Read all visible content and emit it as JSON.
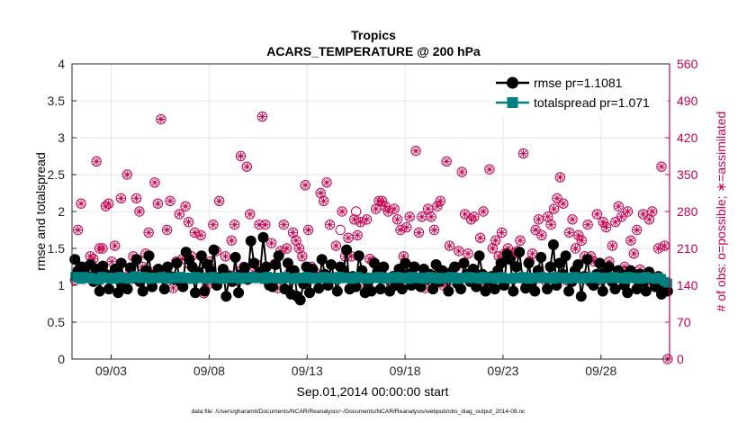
{
  "chart_data": {
    "type": "line",
    "title": "Tropics",
    "subtitle": "ACARS_TEMPERATURE @ 200 hPa",
    "xlabel": "Sep.01,2014 00:00:00 start",
    "ylabel_left": "rmse and totalspread",
    "ylabel_right": "# of obs: o=possible; ∗=assimilated",
    "footer": "data file: /Users/gharamti/Documents/NCAR/Reanalysis/~/Documents/NCAR/Reanalysis/webpub/obs_diag_output_2014-09.nc",
    "xlim": [
      1.0,
      31.5
    ],
    "ylim_left": [
      0,
      4
    ],
    "ylim_right": [
      0,
      560
    ],
    "x_ticks": [
      3,
      8,
      13,
      18,
      23,
      28
    ],
    "x_tick_labels": [
      "09/03",
      "09/08",
      "09/13",
      "09/18",
      "09/23",
      "09/28"
    ],
    "y_ticks_left": [
      "0",
      "0.5",
      "1",
      "1.5",
      "2",
      "2.5",
      "3",
      "3.5",
      "4"
    ],
    "y_ticks_right": [
      "0",
      "70",
      "140",
      "210",
      "280",
      "350",
      "420",
      "490",
      "560"
    ],
    "grid": true,
    "legend_position": "top-right",
    "colors": {
      "rmse": "#000000",
      "totalspread": "#007f7f",
      "obs": "#c8004f",
      "axis": "#262626",
      "grid": "#e6e6e6"
    },
    "series": [
      {
        "name": "rmse pr=1.1081",
        "axis": "left",
        "marker": "filled-circle",
        "values": [
          1.35,
          1.2,
          1.25,
          1.18,
          1.12,
          1.28,
          1.05,
          1.22,
          0.92,
          1.26,
          1.15,
          0.95,
          1.1,
          1.22,
          0.9,
          1.3,
          1.0,
          0.95,
          1.24,
          1.1,
          1.35,
          1.05,
          0.92,
          1.2,
          1.4,
          0.98,
          1.15,
          1.22,
          1.1,
          0.95,
          1.25,
          1.12,
          1.08,
          1.3,
          1.05,
          0.98,
          1.45,
          1.35,
          1.25,
          0.9,
          1.18,
          1.4,
          0.92,
          1.28,
          1.2,
          1.48,
          1.0,
          1.1,
          1.22,
          0.85,
          1.12,
          1.05,
          1.38,
          0.9,
          1.15,
          1.24,
          1.08,
          1.6,
          1.3,
          1.12,
          1.18,
          1.65,
          1.25,
          1.0,
          0.98,
          1.28,
          1.4,
          1.1,
          0.95,
          1.3,
          0.88,
          1.2,
          0.85,
          0.8,
          1.02,
          1.25,
          0.9,
          1.22,
          1.1,
          0.96,
          1.35,
          1.15,
          1.0,
          1.28,
          1.1,
          0.92,
          1.25,
          1.2,
          1.48,
          0.95,
          1.12,
          0.98,
          1.4,
          1.2,
          0.9,
          1.05,
          0.92,
          1.3,
          1.18,
          0.95,
          1.25,
          1.1,
          0.92,
          1.12,
          1.0,
          1.22,
          0.95,
          1.3,
          1.15,
          1.0,
          1.25,
          1.1,
          0.98,
          1.22,
          1.08,
          1.15,
          0.95,
          1.28,
          1.05,
          1.2,
          1.1,
          0.92,
          1.18,
          1.25,
          1.02,
          0.95,
          1.3,
          1.15,
          1.05,
          1.22,
          0.98,
          1.4,
          1.15,
          0.92,
          1.05,
          1.12,
          0.95,
          1.2,
          1.3,
          1.0,
          1.42,
          1.35,
          0.92,
          1.25,
          1.45,
          1.1,
          0.96,
          1.3,
          1.05,
          0.92,
          1.2,
          1.38,
          1.1,
          0.95,
          1.25,
          1.55,
          1.0,
          1.3,
          1.15,
          1.4,
          0.92,
          1.05,
          1.2,
          1.28,
          0.85,
          1.12,
          1.35,
          1.05,
          1.0,
          1.15,
          1.3,
          0.92,
          1.18,
          1.25,
          1.05,
          0.95,
          1.2,
          1.15,
          1.0,
          0.9,
          1.2,
          1.1,
          0.95,
          1.15,
          1.05,
          0.92,
          1.18,
          1.08,
          0.98,
          1.12,
          0.88,
          1.0,
          0.92
        ]
      },
      {
        "name": "totalspread pr=1.071",
        "axis": "left",
        "marker": "filled-square",
        "values": [
          1.12,
          1.1,
          1.08,
          1.12,
          1.09,
          1.11,
          1.08,
          1.1,
          1.07,
          1.12,
          1.1,
          1.09,
          1.11,
          1.08,
          1.1,
          1.12,
          1.09,
          1.1,
          1.08,
          1.11,
          1.13,
          1.1,
          1.09,
          1.12,
          1.1,
          1.08,
          1.11,
          1.1,
          1.09,
          1.12,
          1.1,
          1.08,
          1.11,
          1.09,
          1.1,
          1.12,
          1.09,
          1.11,
          1.1,
          1.08,
          1.12,
          1.1,
          1.09,
          1.11,
          1.08,
          1.1,
          1.12,
          1.09,
          1.1,
          1.08,
          1.11,
          1.1,
          1.09,
          1.12,
          1.1,
          1.08,
          1.11,
          1.09,
          1.1,
          1.12,
          1.09,
          1.11,
          1.1,
          1.08,
          1.12,
          1.1,
          1.09,
          1.11,
          1.08,
          1.1,
          1.12,
          1.09,
          1.1,
          1.08,
          1.11,
          1.1,
          1.09,
          1.12,
          1.1,
          1.08,
          1.11,
          1.09,
          1.1,
          1.12,
          1.09,
          1.11,
          1.1,
          1.08,
          1.12,
          1.1,
          1.09,
          1.11,
          1.08,
          1.1,
          1.12,
          1.09,
          1.1,
          1.08,
          1.11,
          1.1,
          1.09,
          1.12,
          1.1,
          1.08,
          1.11,
          1.09,
          1.1,
          1.12,
          1.09,
          1.11,
          1.1,
          1.08,
          1.12,
          1.1,
          1.09,
          1.11,
          1.08,
          1.1,
          1.12,
          1.09,
          1.1,
          1.08,
          1.11,
          1.1,
          1.09,
          1.12,
          1.1,
          1.08,
          1.11,
          1.09,
          1.1,
          1.12,
          1.09,
          1.11,
          1.1,
          1.08,
          1.12,
          1.1,
          1.09,
          1.11,
          1.08,
          1.1,
          1.12,
          1.09,
          1.1,
          1.08,
          1.11,
          1.1,
          1.09,
          1.12,
          1.1,
          1.08,
          1.11,
          1.09,
          1.1,
          1.12,
          1.09,
          1.11,
          1.1,
          1.08,
          1.12,
          1.1,
          1.09,
          1.11,
          1.08,
          1.1,
          1.12,
          1.09,
          1.1,
          1.08,
          1.11,
          1.1,
          1.09,
          1.12,
          1.1,
          1.08,
          1.11,
          1.09,
          1.1,
          1.12,
          1.09,
          1.11,
          1.1,
          1.08,
          1.12,
          1.1,
          1.09,
          1.11,
          1.08,
          1.1,
          1.12,
          1.09,
          1.1,
          1.08,
          1.11,
          1.09,
          1.05,
          1.03
        ]
      },
      {
        "name": "# of obs possible / assimilated",
        "axis": "right",
        "marker": "circle-asterisk",
        "values": [
          150,
          245,
          295,
          175,
          165,
          195,
          190,
          375,
          210,
          210,
          290,
          295,
          185,
          215,
          160,
          305,
          155,
          350,
          170,
          195,
          305,
          280,
          175,
          200,
          240,
          165,
          335,
          295,
          455,
          165,
          245,
          300,
          135,
          185,
          275,
          190,
          290,
          260,
          195,
          240,
          160,
          235,
          125,
          140,
          185,
          255,
          205,
          300,
          160,
          195,
          160,
          225,
          255,
          165,
          385,
          175,
          365,
          275,
          165,
          180,
          255,
          460,
          255,
          145,
          220,
          180,
          135,
          205,
          255,
          210,
          165,
          240,
          225,
          210,
          195,
          330,
          245,
          175,
          165,
          155,
          315,
          300,
          335,
          255,
          155,
          215,
          155,
          280,
          195,
          230,
          195,
          265,
          235,
          260,
          145,
          265,
          190,
          185,
          285,
          300,
          300,
          290,
          280,
          140,
          285,
          265,
          245,
          195,
          250,
          270,
          175,
          395,
          240,
          270,
          135,
          285,
          270,
          245,
          290,
          300,
          140,
          375,
          215,
          150,
          175,
          205,
          355,
          275,
          200,
          265,
          270,
          145,
          230,
          280,
          140,
          360,
          210,
          225,
          195,
          240,
          200,
          210,
          195,
          200,
          205,
          225,
          390,
          140,
          185,
          200,
          245,
          265,
          235,
          150,
          270,
          255,
          285,
          305,
          345,
          295,
          150,
          240,
          265,
          210,
          235,
          225,
          195,
          255,
          195,
          185,
          275,
          150,
          260,
          250,
          185,
          215,
          260,
          290,
          270,
          175,
          280,
          225,
          200,
          245,
          170,
          275,
          135,
          265,
          280,
          140,
          210,
          365,
          215,
          0
        ]
      },
      {
        "name": "# of obs (assimilated < possible)",
        "axis": "right",
        "marker": "open-circle",
        "x": [
          7,
          14.7,
          15.5
        ],
        "values": [
          180,
          245,
          280
        ]
      }
    ]
  }
}
